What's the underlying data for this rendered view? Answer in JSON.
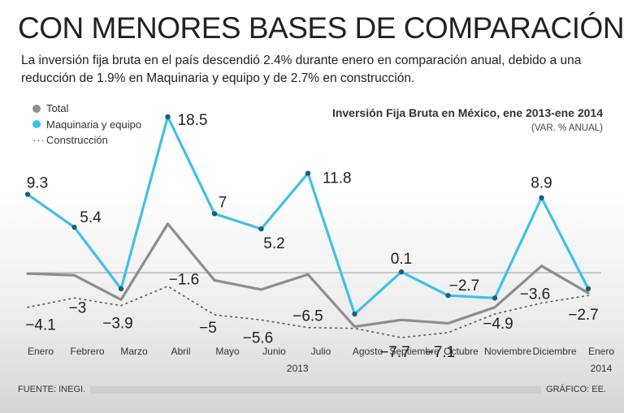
{
  "header": {
    "headline": "CON MENORES BASES DE COMPARACIÓN,",
    "subtitle": "La inversión fija bruta en el país descendió 2.4% durante enero en comparación anual, debido a una reducción de 1.9% en Maquinaria y equipo y de 2.7% en construcción."
  },
  "legend": {
    "total": "Total",
    "maquinaria": "Maquinaria y equipo",
    "construccion": "Construcción"
  },
  "chart_title": "Inversión Fija Bruta en México, ene 2013-ene 2014",
  "chart_unit": "(VAR. % ANUAL)",
  "footer": {
    "source": "FUENTE: INEGI.",
    "credit": "GRÁFICO: EE."
  },
  "colors": {
    "total": "#8d8d8d",
    "maquinaria": "#3fc0ea",
    "construccion": "#555555",
    "zero_line": "#9a9a9a"
  },
  "chart_data": {
    "type": "line",
    "title": "Inversión Fija Bruta en México, ene 2013-ene 2014",
    "subtitle": "(VAR. % ANUAL)",
    "categories": [
      "Enero",
      "Febrero",
      "Marzo",
      "Abril",
      "Mayo",
      "Junio",
      "Julio",
      "Agosto",
      "Septiembre",
      "Octubre",
      "Noviembre",
      "Diciembre",
      "Enero"
    ],
    "year_labels": [
      {
        "category_index": 5.5,
        "text": "2013"
      },
      {
        "category_index": 12,
        "text": "2014"
      }
    ],
    "ylim": [
      -10,
      21
    ],
    "grid": false,
    "legend_position": "top-left",
    "series": [
      {
        "name": "Total",
        "values": [
          -0.1,
          -0.3,
          -3.2,
          5.8,
          -0.9,
          -2.0,
          -0.2,
          -6.4,
          -5.6,
          -6.0,
          -4.1,
          0.8,
          -2.4
        ]
      },
      {
        "name": "Maquinaria y equipo",
        "values": [
          9.3,
          5.4,
          -1.9,
          18.5,
          7.0,
          5.2,
          11.8,
          -4.9,
          0.1,
          -2.7,
          -3.0,
          8.9,
          -1.9
        ]
      },
      {
        "name": "Construcción",
        "values": [
          -4.1,
          -3.0,
          -3.9,
          -1.6,
          -5.0,
          -5.6,
          -6.5,
          -6.6,
          -7.7,
          -7.1,
          -4.9,
          -3.6,
          -2.7
        ]
      }
    ],
    "data_labels": {
      "Maquinaria y equipo": [
        "9.3",
        "5.4",
        "",
        "18.5",
        "7",
        "5.2",
        "11.8",
        "",
        "0.1",
        "-2.7",
        "",
        "8.9",
        ""
      ],
      "Construcción": [
        "-4.1",
        "-3",
        "-3.9",
        "-1.6",
        "-5",
        "-5.6",
        "-6.5",
        "",
        "-7.7",
        "-7.1",
        "-4.9",
        "-3.6",
        "-2.7"
      ]
    }
  }
}
